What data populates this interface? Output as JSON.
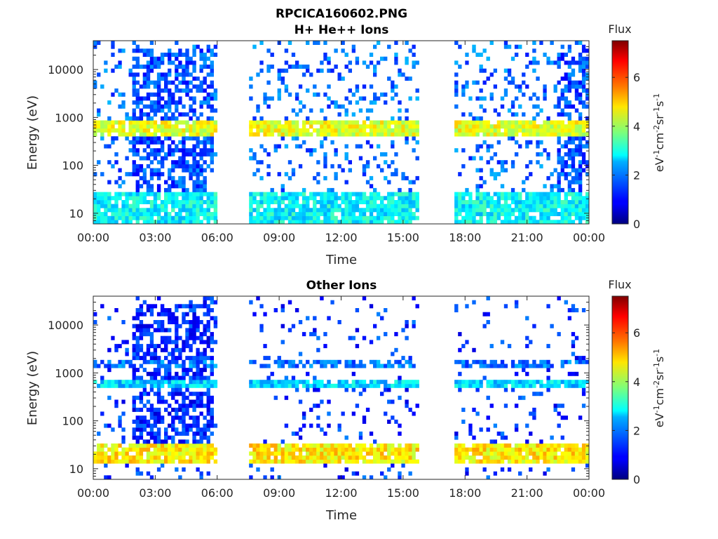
{
  "figure": {
    "title_line1": "RPCICA160602.PNG",
    "title_line2": "H+ He++ Ions",
    "panel2_title": "Other Ions"
  },
  "colorbar": {
    "title": "Flux",
    "label_parts": [
      "eV",
      "-1",
      "cm",
      "-2",
      "sr",
      "-1",
      "s",
      "-1"
    ],
    "ticks": [
      "0",
      "2",
      "4",
      "6"
    ],
    "range": [
      0,
      7.5
    ],
    "colormap": "jet"
  },
  "chart_data": [
    {
      "type": "heatmap",
      "title": "RPCICA160602.PNG H+ He++ Ions",
      "xlabel": "Time",
      "ylabel": "Energy (eV)",
      "yscale": "log",
      "ylim": [
        6,
        40000
      ],
      "xlim": [
        "00:00",
        "24:00"
      ],
      "x_ticks": [
        "00:00",
        "03:00",
        "06:00",
        "09:00",
        "12:00",
        "15:00",
        "18:00",
        "21:00",
        "00:00"
      ],
      "y_ticks": [
        "10",
        "100",
        "1000",
        "10000"
      ],
      "data_gaps_hours": [
        [
          5.95,
          7.6
        ],
        [
          15.85,
          17.5
        ]
      ],
      "features": [
        {
          "time_hours": [
            1.8,
            5.8
          ],
          "energy_eV": [
            6,
            30000
          ],
          "flux": 1.5,
          "note": "elevated broad-band flux"
        },
        {
          "time_hours": [
            0,
            24
          ],
          "energy_eV": [
            400,
            900
          ],
          "flux": 4.5,
          "note": "solar wind band"
        },
        {
          "time_hours": [
            0,
            24
          ],
          "energy_eV": [
            6,
            30
          ],
          "flux": 2.8,
          "note": "low-energy band"
        },
        {
          "time_hours": [
            22.4,
            24
          ],
          "energy_eV": [
            6,
            30000
          ],
          "flux": 1.5,
          "note": "elevated broad-band flux"
        }
      ]
    },
    {
      "type": "heatmap",
      "title": "Other Ions",
      "xlabel": "Time",
      "ylabel": "Energy (eV)",
      "yscale": "log",
      "ylim": [
        6,
        40000
      ],
      "xlim": [
        "00:00",
        "24:00"
      ],
      "x_ticks": [
        "00:00",
        "03:00",
        "06:00",
        "09:00",
        "12:00",
        "15:00",
        "18:00",
        "21:00",
        "00:00"
      ],
      "y_ticks": [
        "10",
        "100",
        "1000",
        "10000"
      ],
      "data_gaps_hours": [
        [
          5.95,
          7.6
        ],
        [
          15.85,
          17.5
        ]
      ],
      "features": [
        {
          "time_hours": [
            0,
            24
          ],
          "energy_eV": [
            12,
            32
          ],
          "flux": 4.8,
          "note": "low-energy band"
        },
        {
          "time_hours": [
            0,
            24
          ],
          "energy_eV": [
            500,
            750
          ],
          "flux": 2.5,
          "note": "band"
        },
        {
          "time_hours": [
            0,
            24
          ],
          "energy_eV": [
            1200,
            1800
          ],
          "flux": 1.8,
          "note": "weak upper band"
        },
        {
          "time_hours": [
            1.8,
            5.8
          ],
          "energy_eV": [
            30,
            30000
          ],
          "flux": 1.2,
          "note": "scattered counts"
        }
      ]
    }
  ]
}
